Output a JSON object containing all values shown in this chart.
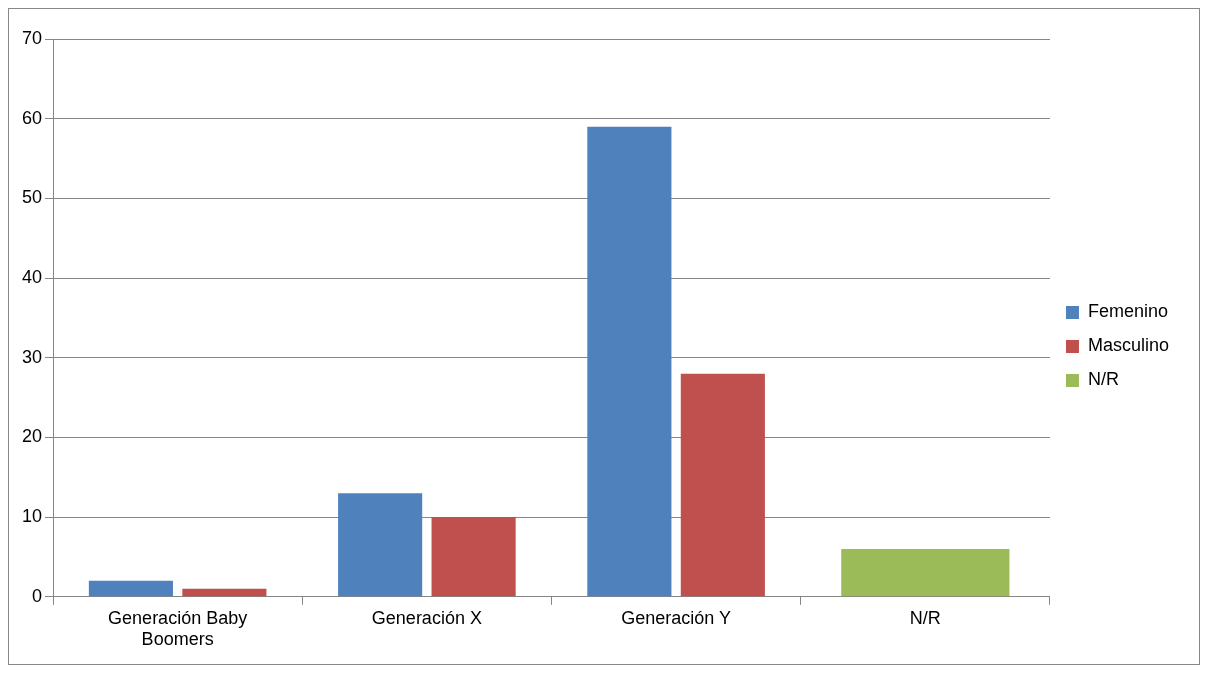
{
  "chart_data": {
    "type": "bar",
    "categories": [
      "Generación Baby Boomers",
      "Generación X",
      "Generación Y",
      "N/R"
    ],
    "series": [
      {
        "name": "Femenino",
        "color": "#4f81bd",
        "values": [
          2,
          13,
          59,
          null
        ]
      },
      {
        "name": "Masculino",
        "color": "#c0504d",
        "values": [
          1,
          10,
          28,
          null
        ]
      },
      {
        "name": "N/R",
        "color": "#9bbb59",
        "values": [
          null,
          null,
          null,
          6
        ]
      }
    ],
    "ylim": [
      0,
      70
    ],
    "yticks": [
      0,
      10,
      20,
      30,
      40,
      50,
      60,
      70
    ],
    "grid": "y",
    "legend": "right"
  }
}
